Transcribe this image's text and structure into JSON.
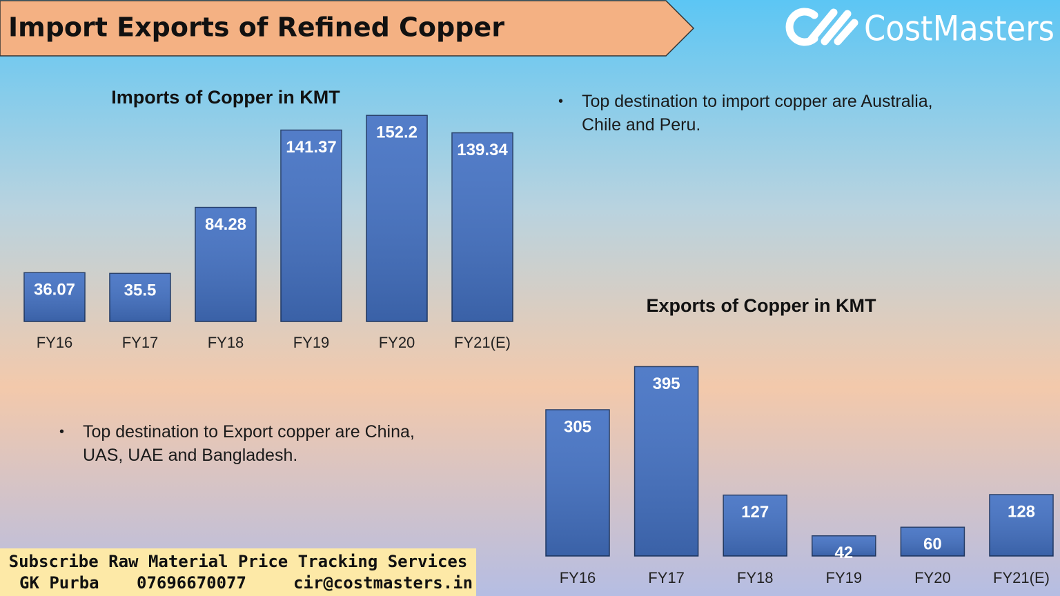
{
  "header": {
    "title": "Import Exports of Refined Copper",
    "brand": "CostMasters"
  },
  "chart_data": [
    {
      "type": "bar",
      "title": "Imports of Copper in KMT",
      "categories": [
        "FY16",
        "FY17",
        "FY18",
        "FY19",
        "FY20",
        "FY21(E)"
      ],
      "values": [
        36.07,
        35.5,
        84.28,
        141.37,
        152.2,
        139.34
      ],
      "color": "#4472c4",
      "ylim": [
        0,
        160
      ]
    },
    {
      "type": "bar",
      "title": "Exports of Copper in KMT",
      "categories": [
        "FY16",
        "FY17",
        "FY18",
        "FY19",
        "FY20",
        "FY21(E)"
      ],
      "values": [
        305,
        395,
        127,
        42,
        60,
        128
      ],
      "color": "#4472c4",
      "ylim": [
        0,
        400
      ]
    }
  ],
  "bullets": [
    "Top destination to import copper are Australia, Chile and Peru.",
    "Top destination to Export copper are China, UAS, UAE and Bangladesh."
  ],
  "footer": {
    "tagline": "Subscribe Raw Material Price Tracking Services",
    "name": "GK Purba",
    "phone": "07696670077",
    "email": "cir@costmasters.in"
  }
}
